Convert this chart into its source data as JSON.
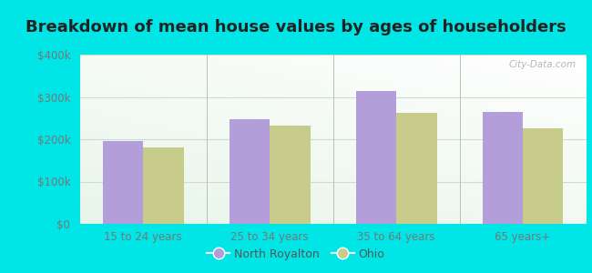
{
  "title": "Breakdown of mean house values by ages of householders",
  "categories": [
    "15 to 24 years",
    "25 to 34 years",
    "35 to 64 years",
    "65 years+"
  ],
  "north_royalton": [
    195000,
    248000,
    315000,
    265000
  ],
  "ohio": [
    180000,
    232000,
    262000,
    225000
  ],
  "bar_color_nr": "#b39ddb",
  "bar_color_oh": "#c8cc8a",
  "background_color": "#00e5e5",
  "plot_bg_color1": "#e8f5e9",
  "plot_bg_color2": "#f5fff5",
  "ylim": [
    0,
    400000
  ],
  "yticks": [
    0,
    100000,
    200000,
    300000,
    400000
  ],
  "ytick_labels": [
    "$0",
    "$100k",
    "$200k",
    "$300k",
    "$400k"
  ],
  "legend_nr": "North Royalton",
  "legend_oh": "Ohio",
  "title_fontsize": 13,
  "tick_fontsize": 8.5,
  "bar_width": 0.32,
  "watermark": "City-Data.com",
  "label_color": "#777777",
  "grid_color": "#ccddcc"
}
